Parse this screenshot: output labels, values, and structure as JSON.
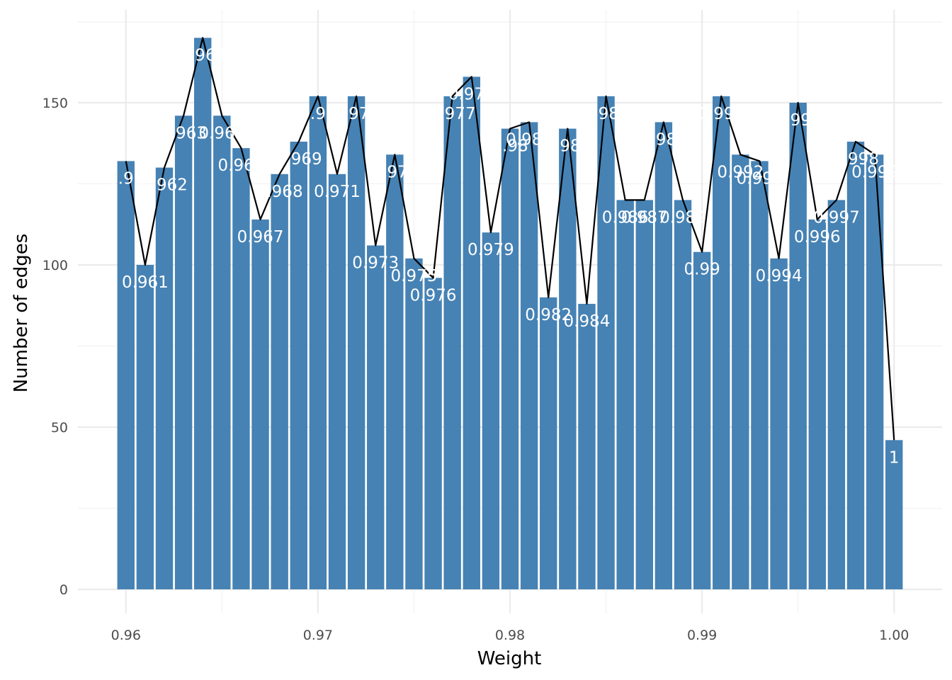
{
  "colors": {
    "bar": "#4682b4",
    "line": "#000000",
    "label": "#ffffff",
    "grid_major": "#ebebeb",
    "grid_minor": "#f2f2f2",
    "background": "#ffffff"
  },
  "chart_data": {
    "type": "bar",
    "overlay": "line",
    "xlabel": "Weight",
    "ylabel": "Number of edges",
    "xlim": [
      0.9575,
      1.0025
    ],
    "ylim": [
      0,
      170
    ],
    "grid": true,
    "legend": "none",
    "x_ticks": [
      0.96,
      0.97,
      0.98,
      0.99,
      1.0
    ],
    "x_tick_labels": [
      "0.96",
      "0.97",
      "0.98",
      "0.99",
      "1.00"
    ],
    "y_ticks": [
      0,
      50,
      100,
      150
    ],
    "y_tick_labels": [
      "0",
      "50",
      "100",
      "150"
    ],
    "x": [
      0.96,
      0.961,
      0.962,
      0.963,
      0.964,
      0.965,
      0.966,
      0.967,
      0.968,
      0.969,
      0.97,
      0.971,
      0.972,
      0.973,
      0.974,
      0.975,
      0.976,
      0.977,
      0.978,
      0.979,
      0.98,
      0.981,
      0.982,
      0.983,
      0.984,
      0.985,
      0.986,
      0.987,
      0.988,
      0.989,
      0.99,
      0.991,
      0.992,
      0.993,
      0.994,
      0.995,
      0.996,
      0.997,
      0.998,
      0.999,
      1.0
    ],
    "values": [
      132,
      100,
      130,
      146,
      170,
      146,
      136,
      114,
      128,
      138,
      152,
      128,
      152,
      106,
      134,
      102,
      96,
      152,
      158,
      110,
      142,
      144,
      90,
      142,
      88,
      152,
      120,
      120,
      144,
      120,
      104,
      152,
      134,
      132,
      102,
      150,
      114,
      120,
      138,
      134,
      46
    ],
    "labels": [
      "0.96",
      "0.961",
      "0.962",
      "0.963",
      "0.964",
      "0.965",
      "0.966",
      "0.967",
      "0.968",
      "0.969",
      "0.97",
      "0.971",
      "0.972",
      "0.973",
      "0.974",
      "0.975",
      "0.976",
      "0.977",
      "0.978",
      "0.979",
      "0.98",
      "0.981",
      "0.982",
      "0.983",
      "0.984",
      "0.985",
      "0.986",
      "0.987",
      "0.988",
      "0.989",
      "0.99",
      "0.991",
      "0.992",
      "0.993",
      "0.994",
      "0.995",
      "0.996",
      "0.997",
      "0.998",
      "0.999",
      "1"
    ]
  }
}
